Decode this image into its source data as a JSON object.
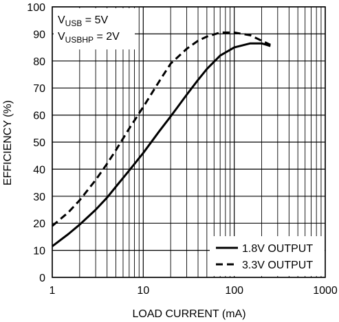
{
  "chart_data": {
    "type": "line",
    "title": "",
    "xlabel": "LOAD CURRENT (mA)",
    "ylabel": "EFFICIENCY (%)",
    "xscale": "log",
    "xlim": [
      1,
      1000
    ],
    "ylim": [
      0,
      100
    ],
    "grid": true,
    "x_ticks": [
      1,
      10,
      100,
      1000
    ],
    "x_tick_labels": [
      "1",
      "10",
      "100",
      "1000"
    ],
    "y_ticks": [
      0,
      10,
      20,
      30,
      40,
      50,
      60,
      70,
      80,
      90,
      100
    ],
    "y_tick_labels": [
      "0",
      "10",
      "20",
      "30",
      "40",
      "50",
      "60",
      "70",
      "80",
      "90",
      "100"
    ],
    "annotations": [
      {
        "main": "V",
        "sub": "USB",
        "rest": " = 5V"
      },
      {
        "main": "V",
        "sub": "USBHP",
        "rest": " = 2V"
      }
    ],
    "legend_position": "bottom-right",
    "series": [
      {
        "name": "1.8V OUTPUT",
        "style": "solid",
        "color": "#000000",
        "x": [
          1,
          1.5,
          2,
          3,
          4,
          5,
          7,
          10,
          15,
          20,
          30,
          40,
          50,
          70,
          100,
          150,
          200,
          250
        ],
        "y": [
          11.5,
          16,
          19.5,
          25,
          29.5,
          33.5,
          39.5,
          46,
          54,
          59.5,
          67.5,
          73,
          77,
          82,
          85,
          86.5,
          86.5,
          85.5
        ]
      },
      {
        "name": "3.3V OUTPUT",
        "style": "dashed",
        "color": "#000000",
        "x": [
          1,
          1.5,
          2,
          3,
          4,
          5,
          7,
          10,
          15,
          20,
          30,
          40,
          50,
          70,
          100,
          150,
          200,
          250
        ],
        "y": [
          19,
          24,
          28.5,
          36,
          42,
          47,
          55,
          63,
          72.5,
          79,
          84.5,
          87.5,
          89,
          90.5,
          90.5,
          89.5,
          87.5,
          86
        ]
      }
    ]
  }
}
